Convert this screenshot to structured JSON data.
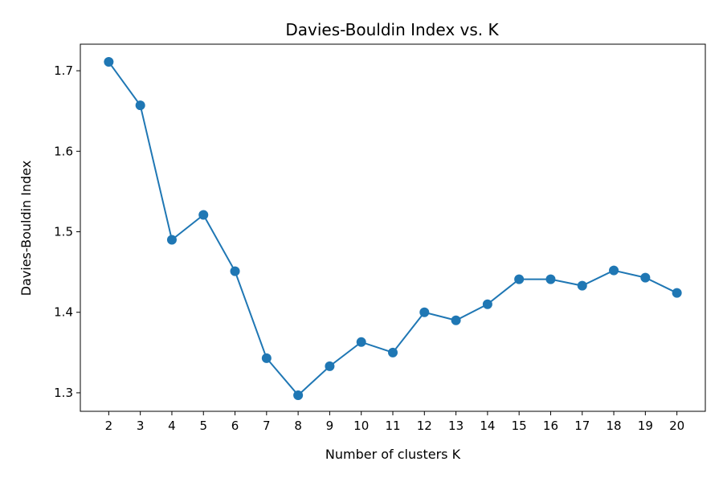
{
  "chart_data": {
    "type": "line",
    "title": "Davies-Bouldin Index vs. K",
    "xlabel": "Number of clusters K",
    "ylabel": "Davies-Bouldin Index",
    "x": [
      2,
      3,
      4,
      5,
      6,
      7,
      8,
      9,
      10,
      11,
      12,
      13,
      14,
      15,
      16,
      17,
      18,
      19,
      20
    ],
    "series": [
      {
        "values": [
          1.711,
          1.657,
          1.49,
          1.521,
          1.451,
          1.343,
          1.297,
          1.333,
          1.363,
          1.35,
          1.4,
          1.39,
          1.41,
          1.441,
          1.441,
          1.433,
          1.452,
          1.443,
          1.424
        ],
        "color": "#1f77b4",
        "marker": "circle"
      }
    ],
    "xlim": [
      1.1,
      20.9
    ],
    "ylim": [
      1.277,
      1.733
    ],
    "yticks": [
      1.3,
      1.4,
      1.5,
      1.6,
      1.7
    ],
    "ytick_labels": [
      "1.3",
      "1.4",
      "1.5",
      "1.6",
      "1.7"
    ],
    "xtick_labels": [
      "2",
      "3",
      "4",
      "5",
      "6",
      "7",
      "8",
      "9",
      "10",
      "11",
      "12",
      "13",
      "14",
      "15",
      "16",
      "17",
      "18",
      "19",
      "20"
    ],
    "grid": false,
    "legend": "none"
  }
}
